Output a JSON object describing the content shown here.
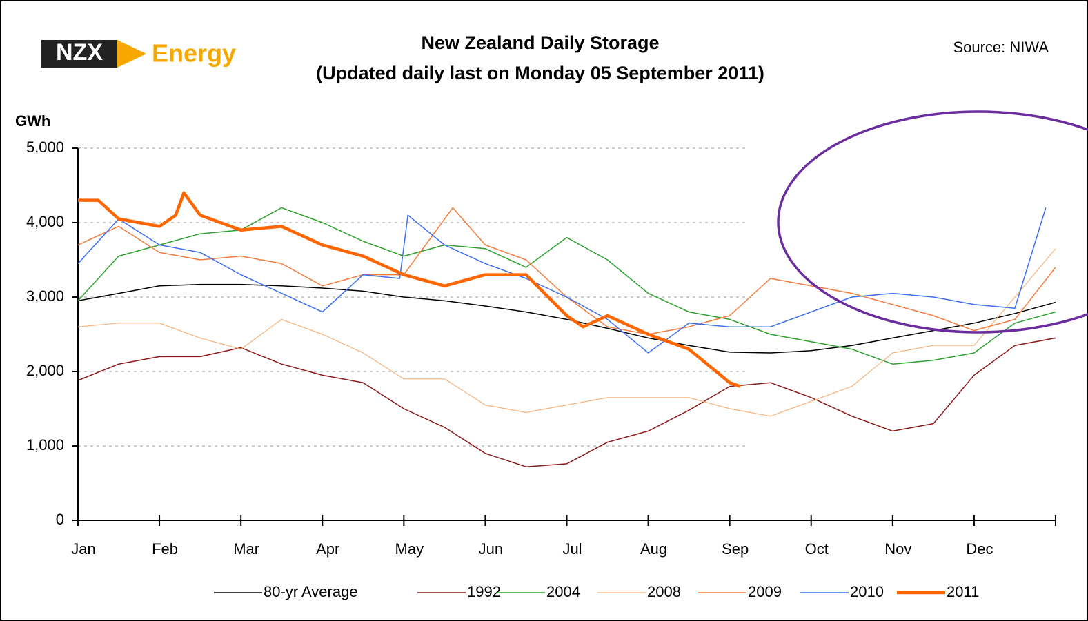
{
  "chart_data": {
    "type": "line",
    "brand": "NZX",
    "brand_suffix": "Energy",
    "title": "New Zealand Daily Storage",
    "subtitle": "(Updated daily last on Monday 05 September 2011)",
    "source": "Source: NIWA",
    "y_label": "GWh",
    "xlim": [
      0,
      12
    ],
    "xticks": [
      {
        "value": 0,
        "label": "Jan"
      },
      {
        "value": 1,
        "label": "Feb"
      },
      {
        "value": 2,
        "label": "Mar"
      },
      {
        "value": 3,
        "label": "Apr"
      },
      {
        "value": 4,
        "label": "May"
      },
      {
        "value": 5,
        "label": "Jun"
      },
      {
        "value": 6,
        "label": "Jul"
      },
      {
        "value": 7,
        "label": "Aug"
      },
      {
        "value": 8,
        "label": "Sep"
      },
      {
        "value": 9,
        "label": "Oct"
      },
      {
        "value": 10,
        "label": "Nov"
      },
      {
        "value": 11,
        "label": "Dec"
      }
    ],
    "ylim": [
      0,
      5000
    ],
    "yticks": [
      0,
      {
        "value": 1000,
        "label": "1,000"
      },
      {
        "value": 2000,
        "label": "2,000"
      },
      {
        "value": 3000,
        "label": "3,000"
      },
      {
        "value": 4000,
        "label": "4,000"
      },
      {
        "value": 5000,
        "label": "5,000"
      }
    ],
    "grid": true,
    "legend": "bottom",
    "series": [
      {
        "name": "80-yr Average",
        "color": "#000000",
        "width": 1.5,
        "x": [
          0,
          0.5,
          1,
          1.5,
          2,
          2.5,
          3,
          3.5,
          4,
          4.5,
          5,
          5.5,
          6,
          6.5,
          7,
          7.5,
          8,
          8.5,
          9,
          9.5,
          10,
          10.5,
          11,
          11.5,
          12
        ],
        "values": [
          2950,
          3050,
          3150,
          3170,
          3170,
          3150,
          3120,
          3080,
          3000,
          2950,
          2880,
          2800,
          2700,
          2580,
          2450,
          2350,
          2260,
          2250,
          2280,
          2350,
          2450,
          2550,
          2650,
          2780,
          2930
        ]
      },
      {
        "name": "1992",
        "color": "#8b1a1a",
        "width": 1.5,
        "x": [
          0,
          0.5,
          1,
          1.5,
          2,
          2.5,
          3,
          3.5,
          4,
          4.5,
          5,
          5.5,
          6,
          6.5,
          7,
          7.5,
          8,
          8.5,
          9,
          9.5,
          10,
          10.5,
          11,
          11.5,
          12
        ],
        "values": [
          1880,
          2100,
          2200,
          2200,
          2320,
          2100,
          1950,
          1850,
          1500,
          1250,
          900,
          720,
          760,
          1050,
          1200,
          1480,
          1800,
          1850,
          1650,
          1400,
          1200,
          1300,
          1950,
          2350,
          2450
        ]
      },
      {
        "name": "2004",
        "color": "#2ca02c",
        "width": 1.5,
        "x": [
          0,
          0.5,
          1,
          1.5,
          2,
          2.5,
          3,
          3.5,
          4,
          4.5,
          5,
          5.5,
          6,
          6.5,
          7,
          7.5,
          8,
          8.5,
          9,
          9.5,
          10,
          10.5,
          11,
          11.5,
          12
        ],
        "values": [
          2950,
          3550,
          3700,
          3850,
          3900,
          4200,
          4000,
          3750,
          3550,
          3700,
          3650,
          3400,
          3800,
          3500,
          3050,
          2800,
          2700,
          2500,
          2400,
          2300,
          2100,
          2150,
          2250,
          2650,
          2800
        ]
      },
      {
        "name": "2008",
        "color": "#f7b27a",
        "width": 1.2,
        "x": [
          0,
          0.5,
          1,
          1.5,
          2,
          2.5,
          3,
          3.5,
          4,
          4.5,
          5,
          5.5,
          6,
          6.5,
          7,
          7.5,
          8,
          8.5,
          9,
          9.5,
          10,
          10.5,
          11,
          11.5,
          12
        ],
        "values": [
          2600,
          2650,
          2650,
          2450,
          2300,
          2700,
          2500,
          2250,
          1900,
          1900,
          1550,
          1450,
          1550,
          1650,
          1650,
          1650,
          1500,
          1400,
          1600,
          1800,
          2250,
          2350,
          2350,
          3000,
          3650
        ]
      },
      {
        "name": "2009",
        "color": "#f27b3c",
        "width": 1.5,
        "x": [
          0,
          0.5,
          1,
          1.5,
          2,
          2.5,
          3,
          3.5,
          4,
          4.6,
          5,
          5.5,
          6,
          6.5,
          7,
          7.5,
          8,
          8.5,
          9,
          9.5,
          10,
          10.5,
          11,
          11.5,
          12
        ],
        "values": [
          3700,
          3950,
          3600,
          3500,
          3550,
          3450,
          3150,
          3300,
          3300,
          4200,
          3700,
          3500,
          3000,
          2600,
          2500,
          2600,
          2750,
          3250,
          3150,
          3050,
          2900,
          2750,
          2550,
          2700,
          3400
        ]
      },
      {
        "name": "2010",
        "color": "#3b6ff0",
        "width": 1.5,
        "x": [
          0,
          0.5,
          1,
          1.5,
          2,
          2.5,
          3,
          3.5,
          3.95,
          4.05,
          4.5,
          5,
          5.5,
          6,
          6.5,
          7,
          7.5,
          8,
          8.5,
          9,
          9.5,
          10,
          10.5,
          11,
          11.5,
          11.88
        ],
        "values": [
          3450,
          4050,
          3700,
          3600,
          3300,
          3050,
          2800,
          3300,
          3250,
          4100,
          3700,
          3450,
          3250,
          3000,
          2700,
          2250,
          2650,
          2600,
          2600,
          2800,
          3000,
          3050,
          3000,
          2900,
          2850,
          4200
        ]
      },
      {
        "name": "2011",
        "color": "#ff6600",
        "width": 4.5,
        "x": [
          0,
          0.25,
          0.5,
          1,
          1.2,
          1.3,
          1.5,
          2,
          2.5,
          3,
          3.5,
          4,
          4.5,
          5,
          5.5,
          6,
          6.2,
          6.5,
          7,
          7.5,
          8,
          8.13
        ],
        "values": [
          4300,
          4300,
          4050,
          3950,
          4100,
          4400,
          4100,
          3900,
          3950,
          3700,
          3550,
          3300,
          3150,
          3300,
          3300,
          2750,
          2600,
          2750,
          2500,
          2300,
          1850,
          1800
        ]
      }
    ]
  }
}
